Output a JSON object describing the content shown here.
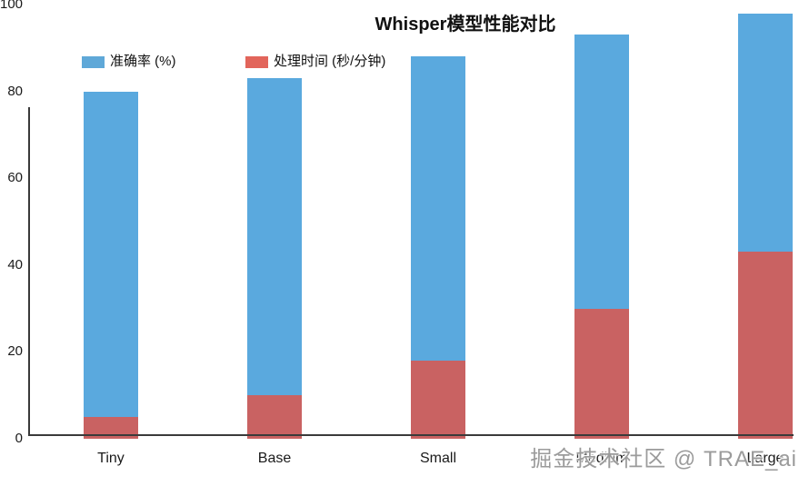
{
  "chart_data": {
    "type": "bar",
    "title": "Whisper模型性能对比",
    "categories": [
      "Tiny",
      "Base",
      "Small",
      "Medium",
      "Large"
    ],
    "series": [
      {
        "name": "准确率 (%)",
        "values": [
          80,
          83,
          88,
          93,
          98
        ],
        "color": "#5AA9DE",
        "legend_color": "#5FA8D8"
      },
      {
        "name": "处理时间 (秒/分钟)",
        "values": [
          5,
          10,
          18,
          30,
          43
        ],
        "color": "#C96262",
        "legend_color": "#E2655B"
      }
    ],
    "xlabel": "",
    "ylabel": "",
    "ylim": [
      0,
      100
    ],
    "yticks": [
      0,
      20,
      40,
      60,
      80,
      100
    ],
    "grid": false,
    "legend_position": "top-inside",
    "bar_style": "overlapped",
    "axis_color": "#3a3a3a"
  },
  "watermark": {
    "text": "掘金技术社区 @ TRAE_ai"
  }
}
